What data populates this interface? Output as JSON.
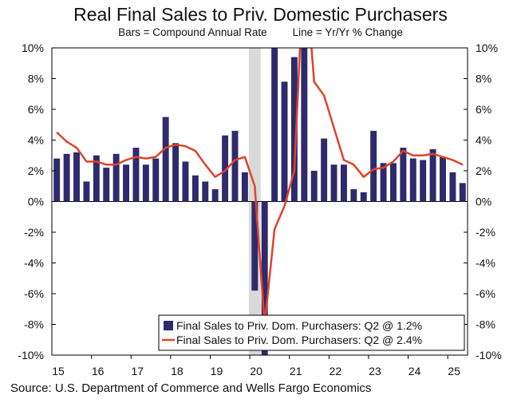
{
  "title": "Real Final Sales to Priv. Domestic Purchasers",
  "subtitle_left": "Bars = Compound Annual Rate",
  "subtitle_right": "Line = Yr/Yr % Change",
  "source": "Source: U.S. Department of Commerce and Wells Fargo Economics",
  "colors": {
    "bar": "#2e2a6b",
    "line": "#e0432a",
    "recession": "#d9d9d9",
    "axis": "#000000"
  },
  "chart_data": {
    "type": "bar+line",
    "title": "Real Final Sales to Priv. Domestic Purchasers",
    "ylim": [
      -10,
      10
    ],
    "y_ticks_left": [
      "10%",
      "8%",
      "6%",
      "4%",
      "2%",
      "0%",
      "-2%",
      "-4%",
      "-6%",
      "-8%",
      "-10%"
    ],
    "y_ticks_right": [
      "10%",
      "8%",
      "6%",
      "4%",
      "2%",
      "0%",
      "-2%",
      "-4%",
      "-6%",
      "-8%",
      "-10%"
    ],
    "y_tick_values": [
      10,
      8,
      6,
      4,
      2,
      0,
      -2,
      -4,
      -6,
      -8,
      -10
    ],
    "x_tick_labels": [
      "15",
      "16",
      "17",
      "18",
      "19",
      "20",
      "21",
      "22",
      "23",
      "24",
      "25"
    ],
    "quarters": [
      "2015Q1",
      "2015Q2",
      "2015Q3",
      "2015Q4",
      "2016Q1",
      "2016Q2",
      "2016Q3",
      "2016Q4",
      "2017Q1",
      "2017Q2",
      "2017Q3",
      "2017Q4",
      "2018Q1",
      "2018Q2",
      "2018Q3",
      "2018Q4",
      "2019Q1",
      "2019Q2",
      "2019Q3",
      "2019Q4",
      "2020Q1",
      "2020Q2",
      "2020Q3",
      "2020Q4",
      "2021Q1",
      "2021Q2",
      "2021Q3",
      "2021Q4",
      "2022Q1",
      "2022Q2",
      "2022Q3",
      "2022Q4",
      "2023Q1",
      "2023Q2",
      "2023Q3",
      "2023Q4",
      "2024Q1",
      "2024Q2",
      "2024Q3",
      "2024Q4",
      "2025Q1",
      "2025Q2"
    ],
    "recession_quarter_index": 20,
    "series": [
      {
        "name": "Final Sales to Priv. Dom. Purchasers: Q2 @ 1.2%",
        "type": "bar",
        "values": [
          2.8,
          3.1,
          3.2,
          1.3,
          3.0,
          2.2,
          3.1,
          2.4,
          3.5,
          2.4,
          2.8,
          5.5,
          3.8,
          2.6,
          1.7,
          1.3,
          0.8,
          4.3,
          4.6,
          1.9,
          -5.8,
          -10.0,
          10.0,
          7.8,
          9.4,
          10.0,
          2.0,
          4.1,
          2.4,
          2.4,
          0.8,
          0.6,
          4.6,
          2.5,
          2.5,
          3.5,
          2.8,
          2.7,
          3.4,
          2.9,
          1.9,
          1.2
        ]
      },
      {
        "name": "Final Sales to Priv. Dom. Purchasers: Q2 @ 2.4%",
        "type": "line",
        "values": [
          4.5,
          3.9,
          3.5,
          2.6,
          2.6,
          2.4,
          2.4,
          2.7,
          2.9,
          2.8,
          2.9,
          3.5,
          3.7,
          3.6,
          3.3,
          2.4,
          1.6,
          2.0,
          2.7,
          2.9,
          1.0,
          -8.0,
          -1.8,
          -0.3,
          2.0,
          16.0,
          7.8,
          6.9,
          4.8,
          2.7,
          2.4,
          1.6,
          2.1,
          2.2,
          2.6,
          3.3,
          3.0,
          3.0,
          3.1,
          2.9,
          2.7,
          2.4
        ]
      }
    ],
    "legend_position": "bottom-right"
  }
}
